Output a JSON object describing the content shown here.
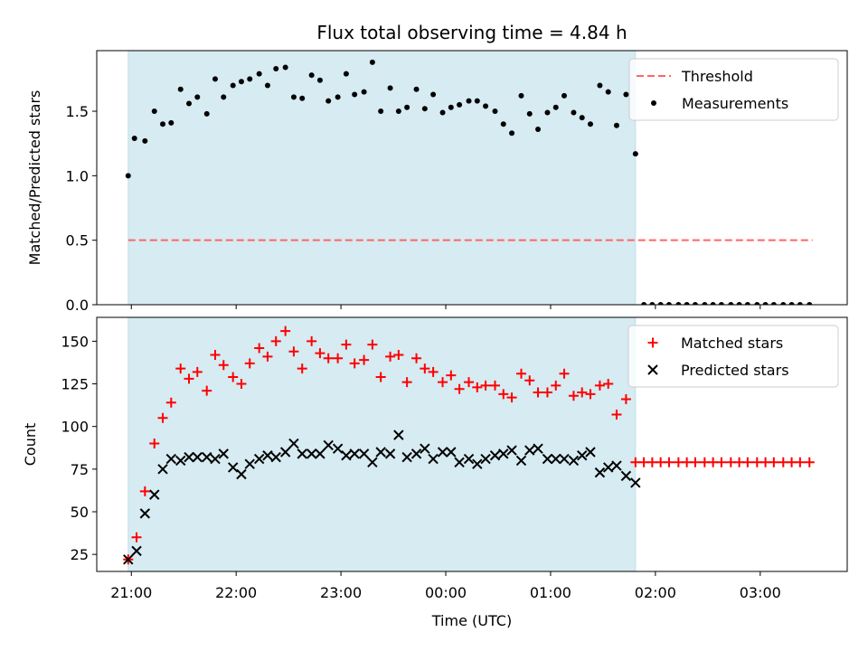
{
  "chart_data": {
    "type": "scatter",
    "title": "Flux total observing time = 4.84 h",
    "x_unit": "time (UTC), day-relative hours; 24+ = next day",
    "xlabel": "Time (UTC)",
    "xlim": [
      20.67,
      27.83
    ],
    "x_ticks": [
      21,
      22,
      23,
      24,
      25,
      26,
      27
    ],
    "x_tick_labels": [
      "21:00",
      "22:00",
      "23:00",
      "00:00",
      "01:00",
      "02:00",
      "03:00"
    ],
    "shaded_region": {
      "x_start": 20.97,
      "x_end": 25.81,
      "color": "#add8e6"
    },
    "panels": [
      {
        "id": "ratio",
        "ylabel": "Matched/Predicted stars",
        "ylim": [
          0,
          1.97
        ],
        "y_ticks": [
          0.0,
          0.5,
          1.0,
          1.5
        ],
        "y_tick_labels": [
          "0.0",
          "0.5",
          "1.0",
          "1.5"
        ],
        "legend_position": "top-right",
        "series": [
          {
            "name": "Threshold",
            "kind": "dashed-line",
            "color": "#ff6666",
            "x": [
              20.97,
              27.5
            ],
            "values": [
              0.5,
              0.5
            ]
          },
          {
            "name": "Measurements",
            "kind": "dot",
            "color": "#000000",
            "x": [
              20.97,
              21.03,
              21.13,
              21.22,
              21.3,
              21.38,
              21.47,
              21.55,
              21.63,
              21.72,
              21.8,
              21.88,
              21.97,
              22.05,
              22.13,
              22.22,
              22.3,
              22.38,
              22.47,
              22.55,
              22.63,
              22.72,
              22.8,
              22.88,
              22.97,
              23.05,
              23.13,
              23.22,
              23.3,
              23.38,
              23.47,
              23.55,
              23.63,
              23.72,
              23.8,
              23.88,
              23.97,
              24.05,
              24.13,
              24.22,
              24.3,
              24.38,
              24.47,
              24.55,
              24.63,
              24.72,
              24.8,
              24.88,
              24.97,
              25.05,
              25.13,
              25.22,
              25.3,
              25.38,
              25.47,
              25.55,
              25.63,
              25.72,
              25.81,
              25.89,
              25.97,
              26.05,
              26.13,
              26.22,
              26.3,
              26.38,
              26.47,
              26.55,
              26.63,
              26.72,
              26.8,
              26.88,
              26.97,
              27.05,
              27.13,
              27.22,
              27.3,
              27.38,
              27.47
            ],
            "values": [
              1.0,
              1.29,
              1.27,
              1.5,
              1.4,
              1.41,
              1.67,
              1.56,
              1.61,
              1.48,
              1.75,
              1.61,
              1.7,
              1.73,
              1.75,
              1.79,
              1.7,
              1.83,
              1.84,
              1.61,
              1.6,
              1.78,
              1.74,
              1.58,
              1.61,
              1.79,
              1.63,
              1.65,
              1.88,
              1.5,
              1.68,
              1.5,
              1.53,
              1.67,
              1.52,
              1.63,
              1.49,
              1.53,
              1.55,
              1.58,
              1.58,
              1.54,
              1.5,
              1.4,
              1.33,
              1.62,
              1.48,
              1.36,
              1.49,
              1.53,
              1.62,
              1.49,
              1.45,
              1.4,
              1.7,
              1.65,
              1.39,
              1.63,
              1.17,
              0,
              0,
              0,
              0,
              0,
              0,
              0,
              0,
              0,
              0,
              0,
              0,
              0,
              0,
              0,
              0,
              0,
              0,
              0,
              0
            ]
          }
        ]
      },
      {
        "id": "count",
        "ylabel": "Count",
        "ylim": [
          15,
          164
        ],
        "y_ticks": [
          25,
          50,
          75,
          100,
          125,
          150
        ],
        "y_tick_labels": [
          "25",
          "50",
          "75",
          "100",
          "125",
          "150"
        ],
        "legend_position": "top-right",
        "series": [
          {
            "name": "Matched stars",
            "kind": "plus",
            "color": "#ff0000",
            "x": [
              20.97,
              21.05,
              21.13,
              21.22,
              21.3,
              21.38,
              21.47,
              21.55,
              21.63,
              21.72,
              21.8,
              21.88,
              21.97,
              22.05,
              22.13,
              22.22,
              22.3,
              22.38,
              22.47,
              22.55,
              22.63,
              22.72,
              22.8,
              22.88,
              22.97,
              23.05,
              23.13,
              23.22,
              23.3,
              23.38,
              23.47,
              23.55,
              23.63,
              23.72,
              23.8,
              23.88,
              23.97,
              24.05,
              24.13,
              24.22,
              24.3,
              24.38,
              24.47,
              24.55,
              24.63,
              24.72,
              24.8,
              24.88,
              24.97,
              25.05,
              25.13,
              25.22,
              25.3,
              25.38,
              25.47,
              25.55,
              25.63,
              25.72,
              25.81,
              25.89,
              25.97,
              26.05,
              26.13,
              26.22,
              26.3,
              26.38,
              26.47,
              26.55,
              26.63,
              26.72,
              26.8,
              26.88,
              26.97,
              27.05,
              27.13,
              27.22,
              27.3,
              27.38,
              27.47
            ],
            "values": [
              22,
              35,
              62,
              90,
              105,
              114,
              134,
              128,
              132,
              121,
              142,
              136,
              129,
              125,
              137,
              146,
              141,
              150,
              156,
              144,
              134,
              150,
              143,
              140,
              140,
              148,
              137,
              139,
              148,
              129,
              141,
              142,
              126,
              140,
              134,
              132,
              126,
              130,
              122,
              126,
              123,
              124,
              124,
              119,
              117,
              131,
              127,
              120,
              120,
              124,
              131,
              118,
              120,
              119,
              124,
              125,
              107,
              116,
              79,
              79,
              79,
              79,
              79,
              79,
              79,
              79,
              79,
              79,
              79,
              79,
              79,
              79,
              79,
              79,
              79,
              79,
              79,
              79,
              79
            ]
          },
          {
            "name": "Predicted stars",
            "kind": "x",
            "color": "#000000",
            "x": [
              20.97,
              21.05,
              21.13,
              21.22,
              21.3,
              21.38,
              21.47,
              21.55,
              21.63,
              21.72,
              21.8,
              21.88,
              21.97,
              22.05,
              22.13,
              22.22,
              22.3,
              22.38,
              22.47,
              22.55,
              22.63,
              22.72,
              22.8,
              22.88,
              22.97,
              23.05,
              23.13,
              23.22,
              23.3,
              23.38,
              23.47,
              23.55,
              23.63,
              23.72,
              23.8,
              23.88,
              23.97,
              24.05,
              24.13,
              24.22,
              24.3,
              24.38,
              24.47,
              24.55,
              24.63,
              24.72,
              24.8,
              24.88,
              24.97,
              25.05,
              25.13,
              25.22,
              25.3,
              25.38,
              25.47,
              25.55,
              25.63,
              25.72,
              25.81
            ],
            "values": [
              22,
              27,
              49,
              60,
              75,
              81,
              80,
              82,
              82,
              82,
              81,
              84,
              76,
              72,
              78,
              81,
              83,
              82,
              85,
              90,
              84,
              84,
              84,
              89,
              87,
              83,
              84,
              84,
              79,
              85,
              84,
              95,
              82,
              84,
              87,
              81,
              85,
              85,
              79,
              81,
              78,
              81,
              83,
              84,
              86,
              80,
              86,
              87,
              81,
              81,
              81,
              80,
              83,
              85,
              73,
              76,
              77,
              71,
              67
            ]
          }
        ]
      }
    ]
  }
}
